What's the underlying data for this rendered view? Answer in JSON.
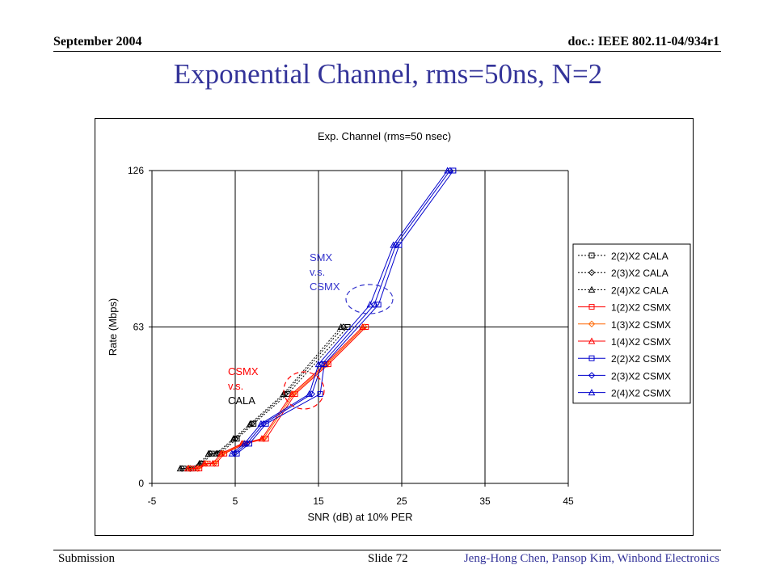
{
  "header": {
    "date": "September 2004",
    "doc": "doc.: IEEE 802.11-04/934r1"
  },
  "slide": {
    "title": "Exponential Channel, rms=50ns, N=2"
  },
  "footer": {
    "left": "Submission",
    "slide_no": "Slide 72",
    "authors": "Jeng-Hong Chen, Pansop Kim, Winbond Electronics"
  },
  "colors": {
    "title": "#333399",
    "cala": "#000000",
    "csmx1": "#ff0000",
    "csmx2": "#0000cc",
    "smx_note": "#3333cc",
    "csmx_note": "#ff0000"
  },
  "chart_data": {
    "type": "line",
    "title": "Exp. Channel (rms=50 nsec)",
    "xlabel": "SNR (dB) at 10% PER",
    "ylabel": "Rate (Mbps)",
    "xlim": [
      -5,
      45
    ],
    "ylim": [
      0,
      126
    ],
    "xticks": [
      -5,
      5,
      15,
      25,
      35,
      45
    ],
    "yticks": [
      0,
      63,
      126
    ],
    "grid": "vertical and horizontal at major ticks",
    "legend_position": "right",
    "series": [
      {
        "name": "2(2)X2 CALA",
        "color": "#000000",
        "dash": "2,2",
        "marker": "square",
        "x": [
          -1.2,
          -0.1,
          1.1,
          2.2,
          3.2,
          5.2,
          7.2,
          11.3,
          18.5
        ],
        "y": [
          6,
          6,
          8,
          12,
          12,
          18,
          24,
          36,
          63
        ]
      },
      {
        "name": "2(3)X2 CALA",
        "color": "#000000",
        "dash": "2,2",
        "marker": "diamond",
        "x": [
          -1.4,
          -0.4,
          0.9,
          2.0,
          2.9,
          5.0,
          7.0,
          11.0,
          18.0
        ],
        "y": [
          6,
          6,
          8,
          12,
          12,
          18,
          24,
          36,
          63
        ]
      },
      {
        "name": "2(4)X2 CALA",
        "color": "#000000",
        "dash": "2,2",
        "marker": "triangle",
        "x": [
          -1.6,
          -0.6,
          0.7,
          1.8,
          2.7,
          4.8,
          6.8,
          10.8,
          17.7
        ],
        "y": [
          6,
          6,
          8,
          12,
          12,
          18,
          24,
          36,
          63
        ]
      },
      {
        "name": "1(2)X2 CSMX",
        "color": "#ff0000",
        "dash": "",
        "marker": "square",
        "x": [
          -0.3,
          0.7,
          1.7,
          2.7,
          3.7,
          6.2,
          8.7,
          12.2,
          16.2,
          20.7
        ],
        "y": [
          6,
          6,
          8,
          8,
          12,
          16,
          18,
          36,
          48,
          63
        ]
      },
      {
        "name": "1(3)X2 CSMX",
        "color": "#ff6600",
        "dash": "",
        "marker": "diamond",
        "x": [
          -0.5,
          0.5,
          1.5,
          2.5,
          3.5,
          6.0,
          8.4,
          12.0,
          16.0,
          20.5
        ],
        "y": [
          6,
          6,
          8,
          8,
          12,
          16,
          18,
          36,
          48,
          63
        ]
      },
      {
        "name": "1(4)X2 CSMX",
        "color": "#ff0000",
        "dash": "",
        "marker": "triangle",
        "x": [
          -0.7,
          0.3,
          1.3,
          2.3,
          3.3,
          5.8,
          8.2,
          11.8,
          15.8,
          20.3
        ],
        "y": [
          6,
          6,
          8,
          8,
          12,
          16,
          18,
          36,
          48,
          63
        ]
      },
      {
        "name": "2(2)X2 CSMX",
        "color": "#0000cc",
        "dash": "",
        "marker": "square",
        "x": [
          5.2,
          6.7,
          8.7,
          15.2,
          15.7,
          22.2,
          24.7,
          31.2
        ],
        "y": [
          12,
          16,
          24,
          36,
          48,
          72,
          96,
          126
        ]
      },
      {
        "name": "2(3)X2 CSMX",
        "color": "#0000cc",
        "dash": "",
        "marker": "diamond",
        "x": [
          4.9,
          6.4,
          8.4,
          14.2,
          15.4,
          21.7,
          24.3,
          30.8
        ],
        "y": [
          12,
          16,
          24,
          36,
          48,
          72,
          96,
          126
        ]
      },
      {
        "name": "2(4)X2 CSMX",
        "color": "#0000cc",
        "dash": "",
        "marker": "triangle",
        "x": [
          4.6,
          6.1,
          8.1,
          13.9,
          15.0,
          21.2,
          24.0,
          30.5
        ],
        "y": [
          12,
          16,
          24,
          36,
          48,
          72,
          96,
          126
        ]
      }
    ],
    "annotations": [
      {
        "lines": [
          "SMX",
          "v.s.",
          "CSMX"
        ],
        "color": "#3333cc"
      },
      {
        "lines": [
          "CSMX",
          "v.s.",
          "CALA"
        ],
        "color": "#ff0000"
      }
    ]
  }
}
